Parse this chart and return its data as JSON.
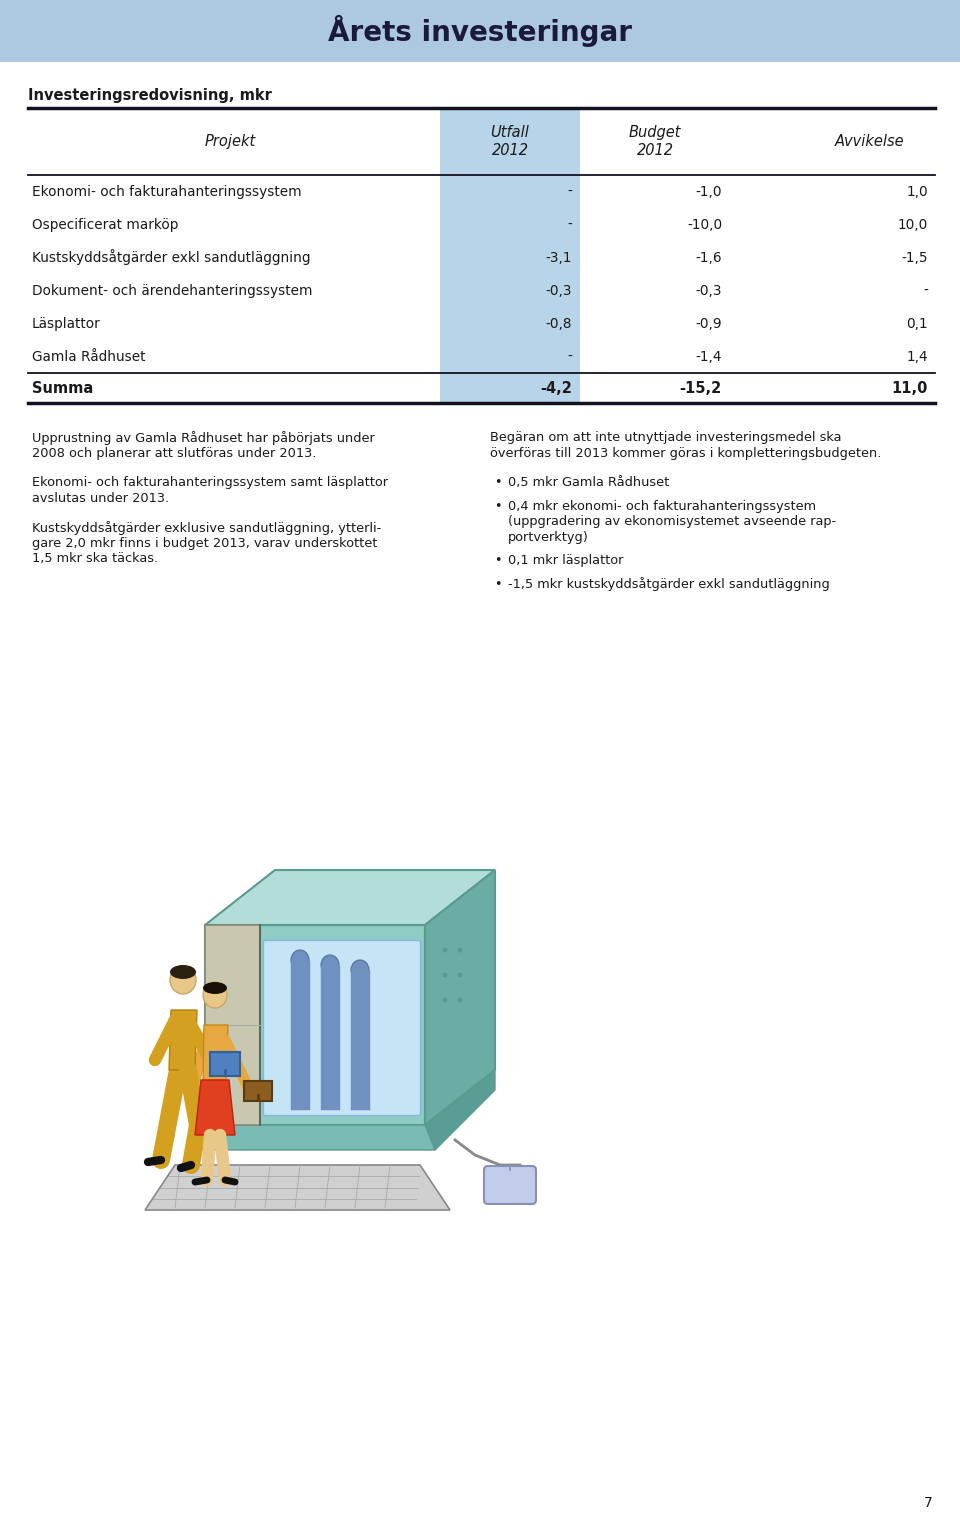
{
  "title": "Årets investeringar",
  "title_bg_color": "#adc9e0",
  "subtitle": "Investeringsredovisning, mkr",
  "table_rows": [
    [
      "Ekonomi- och fakturahanteringssystem",
      "-",
      "-1,0",
      "1,0"
    ],
    [
      "Ospecificerat marköp",
      "-",
      "-10,0",
      "10,0"
    ],
    [
      "Kustskyddsåtgärder exkl sandutläggning",
      "-3,1",
      "-1,6",
      "-1,5"
    ],
    [
      "Dokument- och ärendehanteringssystem",
      "-0,3",
      "-0,3",
      "-"
    ],
    [
      "Läsplattor",
      "-0,8",
      "-0,9",
      "0,1"
    ],
    [
      "Gamla Rådhuset",
      "-",
      "-1,4",
      "1,4"
    ]
  ],
  "summa_row": [
    "Summa",
    "-4,2",
    "-15,2",
    "11,0"
  ],
  "left_paragraphs": [
    "Upprustning av Gamla Rådhuset har påbörjats under\n2008 och planerar att slutföras under 2013.",
    "Ekonomi- och fakturahanteringssystem samt läsplattor\navslutas under 2013.",
    "Kustskyddsåtgärder exklusive sandutläggning, ytterli-\ngare 2,0 mkr finns i budget 2013, varav underskottet\n1,5 mkr ska täckas."
  ],
  "right_paragraph": "Begäran om att inte utnyttjade investeringsmedel ska\növerföras till 2013 kommer göras i kompletteringsbudgeten.",
  "right_bullets": [
    "0,5 mkr Gamla Rådhuset",
    "0,4 mkr ekonomi- och fakturahanteringssystem\n(uppgradering av ekonomisystemet avseende rap-\nportverktyg)",
    "0,1 mkr läsplattor",
    "-1,5 mkr kustskyddsåtgärder exkl sandutläggning"
  ],
  "page_number": "7",
  "bg_color": "#ffffff",
  "text_color": "#1a1a1a",
  "utfall_col_bg": "#b8d4e8"
}
